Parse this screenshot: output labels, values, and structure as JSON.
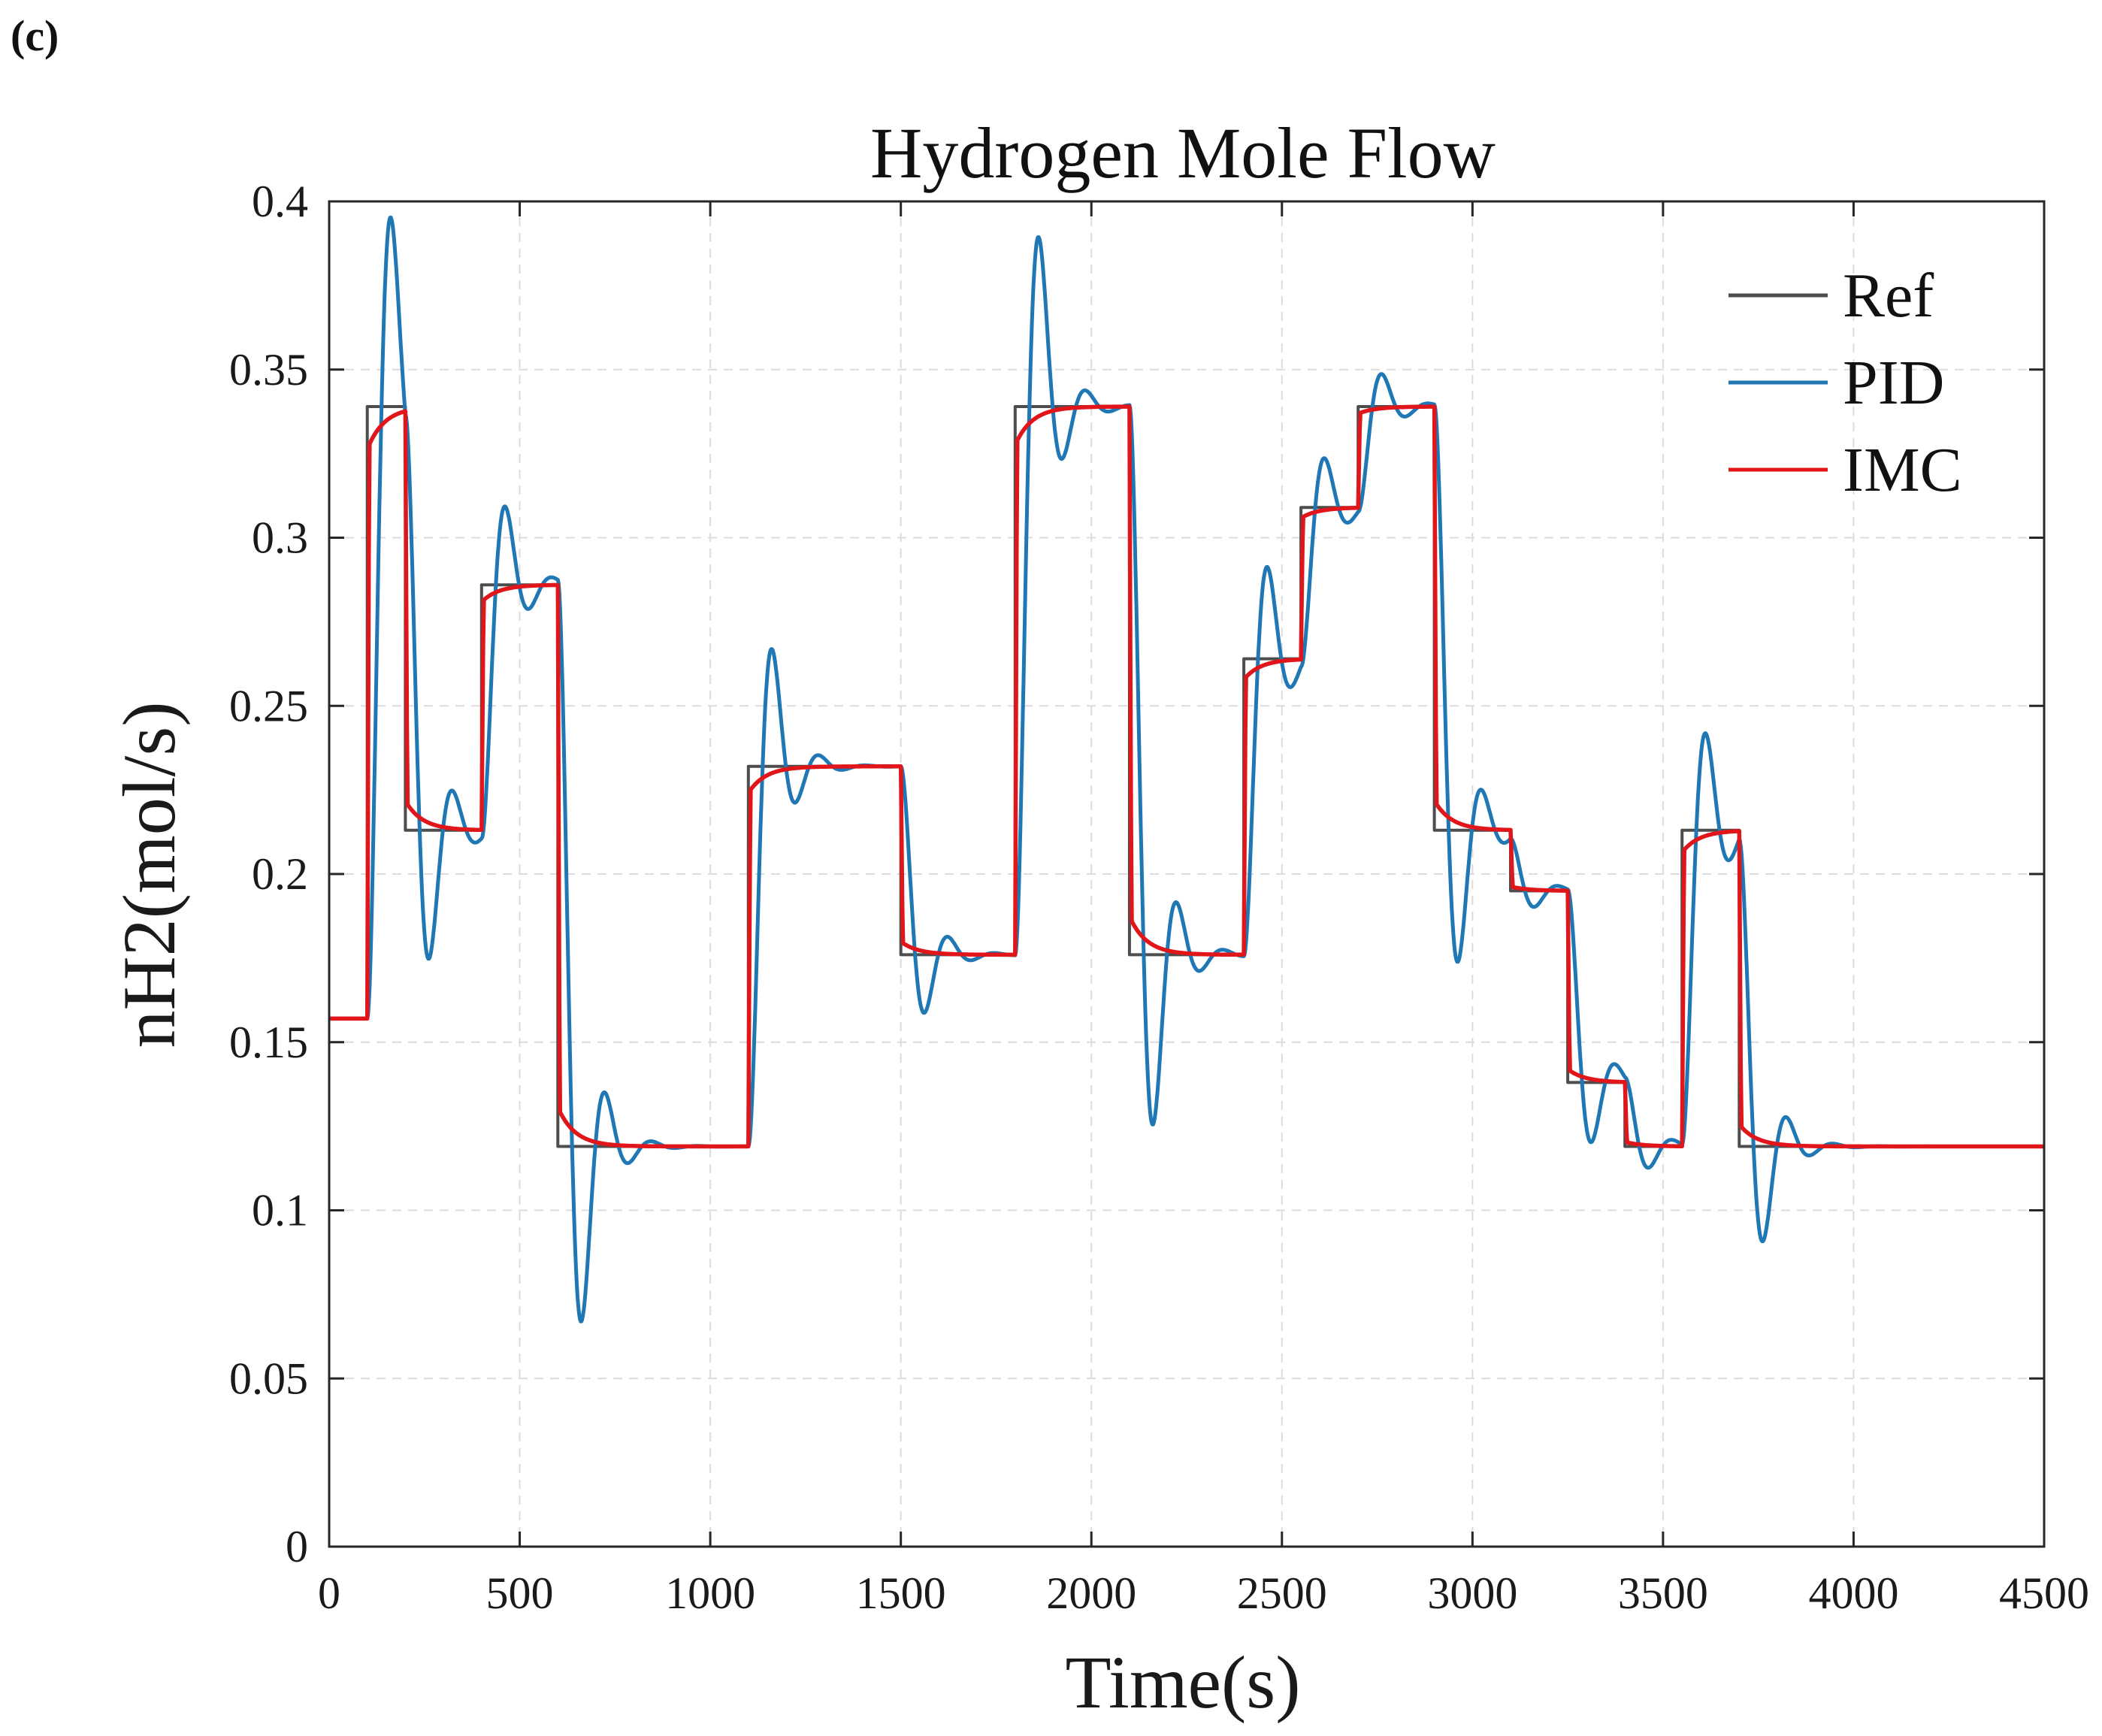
{
  "panel_label": "(c)",
  "chart_data": {
    "type": "line",
    "title": "Hydrogen Mole Flow",
    "xlabel": "Time(s)",
    "ylabel": "nH2(mol/s)",
    "xlim": [
      0,
      4500
    ],
    "ylim": [
      0,
      0.4
    ],
    "xticks": [
      0,
      500,
      1000,
      1500,
      2000,
      2500,
      3000,
      3500,
      4000,
      4500
    ],
    "xtick_labels": [
      "0",
      "500",
      "1000",
      "1500",
      "2000",
      "2500",
      "3000",
      "3500",
      "4000",
      "4500"
    ],
    "yticks": [
      0,
      0.05,
      0.1,
      0.15,
      0.2,
      0.25,
      0.3,
      0.35,
      0.4
    ],
    "ytick_labels": [
      "0",
      "0.05",
      "0.1",
      "0.15",
      "0.2",
      "0.25",
      "0.3",
      "0.35",
      "0.4"
    ],
    "grid": true,
    "legend_position": "top-right",
    "reference_steps": [
      {
        "t": 0,
        "v": 0.157
      },
      {
        "t": 100,
        "v": 0.339
      },
      {
        "t": 200,
        "v": 0.213
      },
      {
        "t": 400,
        "v": 0.286
      },
      {
        "t": 600,
        "v": 0.119
      },
      {
        "t": 1100,
        "v": 0.232
      },
      {
        "t": 1500,
        "v": 0.176
      },
      {
        "t": 1800,
        "v": 0.339
      },
      {
        "t": 2100,
        "v": 0.176
      },
      {
        "t": 2400,
        "v": 0.264
      },
      {
        "t": 2550,
        "v": 0.309
      },
      {
        "t": 2700,
        "v": 0.339
      },
      {
        "t": 2900,
        "v": 0.213
      },
      {
        "t": 3100,
        "v": 0.195
      },
      {
        "t": 3250,
        "v": 0.138
      },
      {
        "t": 3400,
        "v": 0.119
      },
      {
        "t": 3550,
        "v": 0.213
      },
      {
        "t": 3700,
        "v": 0.119
      }
    ],
    "t_end": 4500,
    "series": [
      {
        "name": "Ref",
        "color": "#4d4d4d",
        "style": "reference"
      },
      {
        "name": "PID",
        "color": "#1f77b4",
        "style": "underdamped"
      },
      {
        "name": "IMC",
        "color": "#e0161b",
        "style": "overdamped"
      }
    ]
  }
}
